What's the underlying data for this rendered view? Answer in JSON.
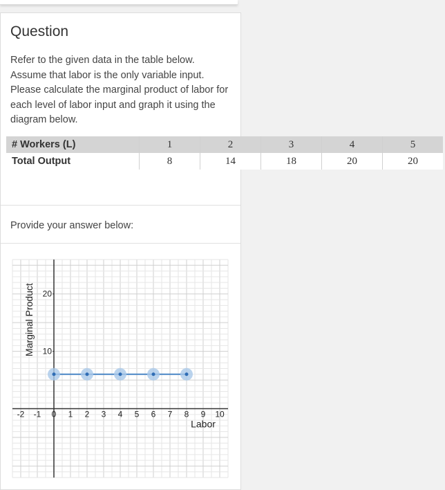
{
  "question": {
    "title": "Question",
    "text": "Refer to the given data in the table below. Assume that labor is the only variable input. Please calculate the marginal product of labor for each level of labor input and graph it using the diagram below."
  },
  "table": {
    "rows": [
      {
        "label": "# Workers (L)",
        "values": [
          "1",
          "2",
          "3",
          "4",
          "5"
        ]
      },
      {
        "label": "Total Output",
        "values": [
          "8",
          "14",
          "18",
          "20",
          "20"
        ]
      }
    ]
  },
  "answer": {
    "label": "Provide your answer below:"
  },
  "chart_data": {
    "type": "scatter",
    "xlabel": "Labor",
    "ylabel": "Marginal Product",
    "xlim": [
      -2.5,
      10.5
    ],
    "ylim": [
      -12,
      26
    ],
    "x_ticks": [
      -2,
      -1,
      0,
      1,
      2,
      3,
      4,
      5,
      6,
      7,
      8,
      9,
      10
    ],
    "y_ticks": [
      10,
      20
    ],
    "grid": true,
    "series": [
      {
        "x": [
          0,
          2,
          4,
          6,
          8
        ],
        "y": [
          6,
          6,
          6,
          6,
          6
        ],
        "connected": true
      }
    ],
    "colors": {
      "line": "#4a86c5",
      "point_halo": "#a9c8e8",
      "point_center": "#2f6db5"
    }
  }
}
